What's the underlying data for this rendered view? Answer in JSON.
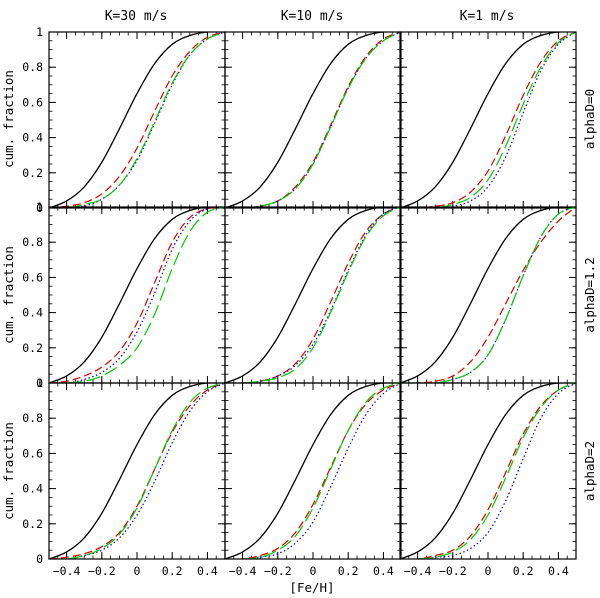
{
  "figure": {
    "column_titles": [
      "K=30 m/s",
      "K=10 m/s",
      "K=1 m/s"
    ],
    "row_labels": [
      "alphaD=0",
      "alphaD=1.2",
      "alphaD=2"
    ],
    "xlabel": "[Fe/H]",
    "ylabel": "cum. fraction"
  },
  "colors": {
    "solid": "#000000",
    "dashed": "#dd0000",
    "dotted": "#0000cc",
    "longdash": "#00cc00"
  },
  "chart_data": {
    "type": "line",
    "layout": "3x3 panel grid",
    "xlim": [
      -0.5,
      0.5
    ],
    "ylim": [
      0,
      1
    ],
    "xticks": [
      -0.4,
      -0.2,
      0,
      0.2,
      0.4
    ],
    "yticks": [
      0,
      0.2,
      0.4,
      0.6,
      0.8,
      1
    ],
    "xtick_labels": [
      "−0.4",
      "−0.2",
      "0",
      "0.2",
      "0.4"
    ],
    "ytick_labels": [
      "0",
      "0.2",
      "0.4",
      "0.6",
      "0.8",
      "1"
    ],
    "x": [
      -0.5,
      -0.4,
      -0.3,
      -0.2,
      -0.1,
      0,
      0.1,
      0.2,
      0.3,
      0.4,
      0.5
    ],
    "reference_curve": [
      0.0,
      0.04,
      0.12,
      0.26,
      0.45,
      0.65,
      0.82,
      0.93,
      0.98,
      1.0,
      1.0
    ],
    "panels": [
      {
        "row": 0,
        "col": 0,
        "series": [
          {
            "style": "dashed",
            "values": [
              0.0,
              0.01,
              0.03,
              0.08,
              0.18,
              0.34,
              0.55,
              0.75,
              0.89,
              0.97,
              1.0
            ]
          },
          {
            "style": "dotted",
            "values": [
              0.0,
              0.0,
              0.01,
              0.05,
              0.13,
              0.27,
              0.48,
              0.7,
              0.87,
              0.96,
              1.0
            ]
          },
          {
            "style": "longdash",
            "values": [
              0.0,
              0.0,
              0.02,
              0.05,
              0.13,
              0.28,
              0.49,
              0.71,
              0.87,
              0.96,
              1.0
            ]
          }
        ]
      },
      {
        "row": 0,
        "col": 1,
        "series": [
          {
            "style": "dashed",
            "values": [
              0.0,
              0.0,
              0.01,
              0.04,
              0.12,
              0.26,
              0.47,
              0.69,
              0.86,
              0.96,
              1.0
            ]
          },
          {
            "style": "dotted",
            "values": [
              0.0,
              0.0,
              0.01,
              0.04,
              0.11,
              0.25,
              0.46,
              0.68,
              0.85,
              0.95,
              1.0
            ]
          },
          {
            "style": "longdash",
            "values": [
              0.0,
              0.0,
              0.01,
              0.04,
              0.11,
              0.25,
              0.46,
              0.68,
              0.85,
              0.95,
              1.0
            ]
          }
        ]
      },
      {
        "row": 0,
        "col": 2,
        "series": [
          {
            "style": "dashed",
            "values": [
              0.0,
              0.0,
              0.01,
              0.03,
              0.09,
              0.21,
              0.41,
              0.64,
              0.83,
              0.95,
              1.0
            ]
          },
          {
            "style": "dotted",
            "values": [
              0.0,
              0.0,
              0.0,
              0.01,
              0.04,
              0.12,
              0.29,
              0.54,
              0.78,
              0.93,
              1.0
            ]
          },
          {
            "style": "longdash",
            "values": [
              0.0,
              0.0,
              0.0,
              0.02,
              0.06,
              0.16,
              0.35,
              0.59,
              0.8,
              0.94,
              1.0
            ]
          }
        ]
      },
      {
        "row": 1,
        "col": 0,
        "series": [
          {
            "style": "dashed",
            "values": [
              0.0,
              0.01,
              0.04,
              0.09,
              0.18,
              0.34,
              0.57,
              0.8,
              0.94,
              0.99,
              1.0
            ]
          },
          {
            "style": "dotted",
            "values": [
              0.0,
              0.0,
              0.02,
              0.06,
              0.14,
              0.29,
              0.51,
              0.76,
              0.92,
              0.99,
              1.0
            ]
          },
          {
            "style": "longdash",
            "values": [
              0.0,
              0.0,
              0.01,
              0.04,
              0.1,
              0.2,
              0.39,
              0.65,
              0.86,
              0.97,
              1.0
            ]
          }
        ]
      },
      {
        "row": 1,
        "col": 1,
        "series": [
          {
            "style": "dashed",
            "values": [
              0.0,
              0.0,
              0.01,
              0.04,
              0.11,
              0.25,
              0.46,
              0.68,
              0.86,
              0.96,
              1.0
            ]
          },
          {
            "style": "dotted",
            "values": [
              0.0,
              0.0,
              0.01,
              0.04,
              0.1,
              0.22,
              0.41,
              0.64,
              0.84,
              0.96,
              1.0
            ]
          },
          {
            "style": "longdash",
            "values": [
              0.0,
              0.0,
              0.01,
              0.03,
              0.08,
              0.2,
              0.4,
              0.63,
              0.83,
              0.95,
              1.0
            ]
          }
        ]
      },
      {
        "row": 1,
        "col": 2,
        "series": [
          {
            "style": "dashed",
            "values": [
              0.0,
              0.0,
              0.01,
              0.04,
              0.12,
              0.26,
              0.45,
              0.64,
              0.8,
              0.92,
              1.0
            ]
          },
          {
            "style": "dotted",
            "values": [
              0.0,
              0.0,
              0.0,
              0.02,
              0.06,
              0.16,
              0.36,
              0.61,
              0.83,
              0.96,
              1.0
            ]
          },
          {
            "style": "longdash",
            "values": [
              0.0,
              0.0,
              0.0,
              0.02,
              0.06,
              0.16,
              0.36,
              0.61,
              0.83,
              0.96,
              1.0
            ]
          }
        ]
      },
      {
        "row": 2,
        "col": 0,
        "series": [
          {
            "style": "dashed",
            "values": [
              0.0,
              0.01,
              0.03,
              0.07,
              0.15,
              0.3,
              0.51,
              0.72,
              0.87,
              0.96,
              1.0
            ]
          },
          {
            "style": "dotted",
            "values": [
              0.0,
              0.0,
              0.02,
              0.05,
              0.12,
              0.25,
              0.44,
              0.66,
              0.84,
              0.95,
              1.0
            ]
          },
          {
            "style": "longdash",
            "values": [
              0.0,
              0.0,
              0.02,
              0.06,
              0.14,
              0.29,
              0.51,
              0.73,
              0.89,
              0.97,
              1.0
            ]
          }
        ]
      },
      {
        "row": 2,
        "col": 1,
        "series": [
          {
            "style": "dashed",
            "values": [
              0.0,
              0.0,
              0.02,
              0.06,
              0.15,
              0.31,
              0.52,
              0.73,
              0.88,
              0.96,
              1.0
            ]
          },
          {
            "style": "dotted",
            "values": [
              0.0,
              0.0,
              0.01,
              0.03,
              0.09,
              0.21,
              0.41,
              0.63,
              0.82,
              0.94,
              1.0
            ]
          },
          {
            "style": "longdash",
            "values": [
              0.0,
              0.0,
              0.01,
              0.05,
              0.13,
              0.29,
              0.51,
              0.73,
              0.89,
              0.97,
              1.0
            ]
          }
        ]
      },
      {
        "row": 2,
        "col": 2,
        "series": [
          {
            "style": "dashed",
            "values": [
              0.0,
              0.0,
              0.02,
              0.05,
              0.13,
              0.28,
              0.49,
              0.71,
              0.87,
              0.96,
              1.0
            ]
          },
          {
            "style": "dotted",
            "values": [
              0.0,
              0.0,
              0.01,
              0.02,
              0.06,
              0.15,
              0.33,
              0.57,
              0.8,
              0.94,
              1.0
            ]
          },
          {
            "style": "longdash",
            "values": [
              0.0,
              0.0,
              0.01,
              0.04,
              0.11,
              0.25,
              0.46,
              0.69,
              0.86,
              0.96,
              1.0
            ]
          }
        ]
      }
    ]
  }
}
